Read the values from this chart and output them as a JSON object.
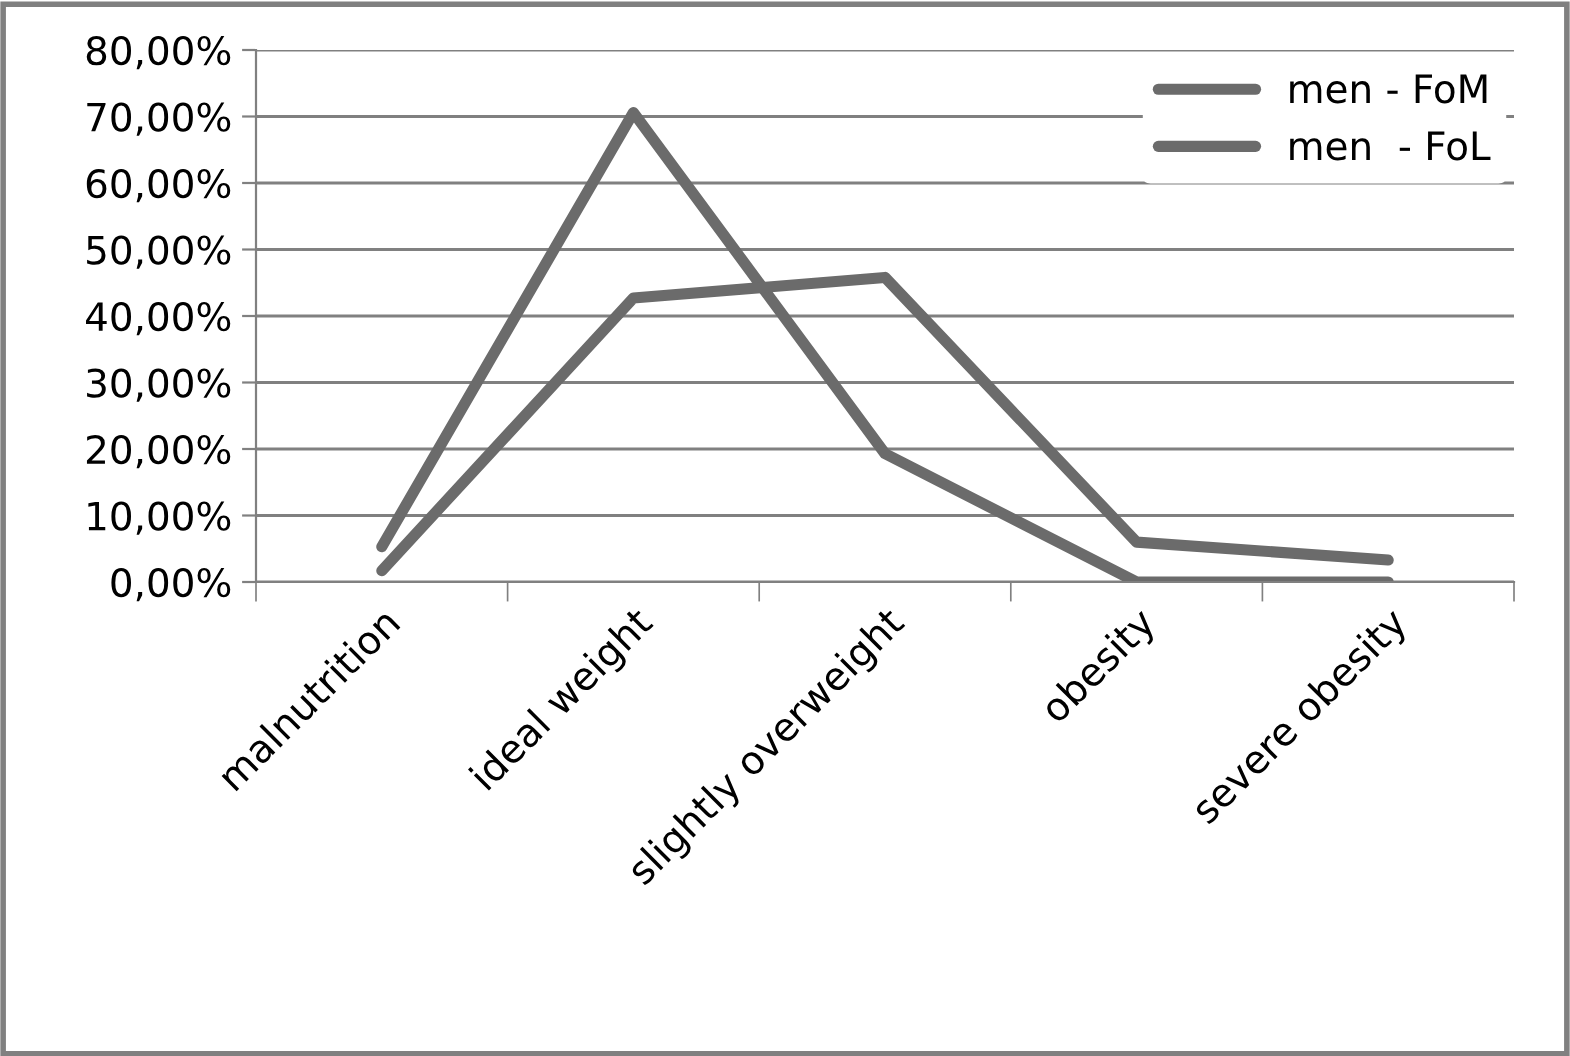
{
  "chart_data": {
    "type": "line",
    "categories": [
      "malnutrition",
      "ideal weight",
      "slightly overweight",
      "obesity",
      "severe obesity"
    ],
    "series": [
      {
        "name": "men - FoM",
        "color": "#6b6b6b",
        "values": [
          5.3,
          70.6,
          19.3,
          0,
          0
        ]
      },
      {
        "name": "men  - FoL",
        "color": "#6b6b6b",
        "values": [
          1.7,
          42.7,
          45.8,
          6.0,
          3.3
        ]
      }
    ],
    "ylim": [
      0,
      80
    ],
    "yticks": [
      {
        "value": 0,
        "label": "0,00%"
      },
      {
        "value": 10,
        "label": "10,00%"
      },
      {
        "value": 20,
        "label": "20,00%"
      },
      {
        "value": 30,
        "label": "30,00%"
      },
      {
        "value": 40,
        "label": "40,00%"
      },
      {
        "value": 50,
        "label": "50,00%"
      },
      {
        "value": 60,
        "label": "60,00%"
      },
      {
        "value": 70,
        "label": "70,00%"
      },
      {
        "value": 80,
        "label": "80,00%"
      }
    ],
    "grid": "y",
    "legend": "top right",
    "marker": "none",
    "line_style": "solid"
  }
}
